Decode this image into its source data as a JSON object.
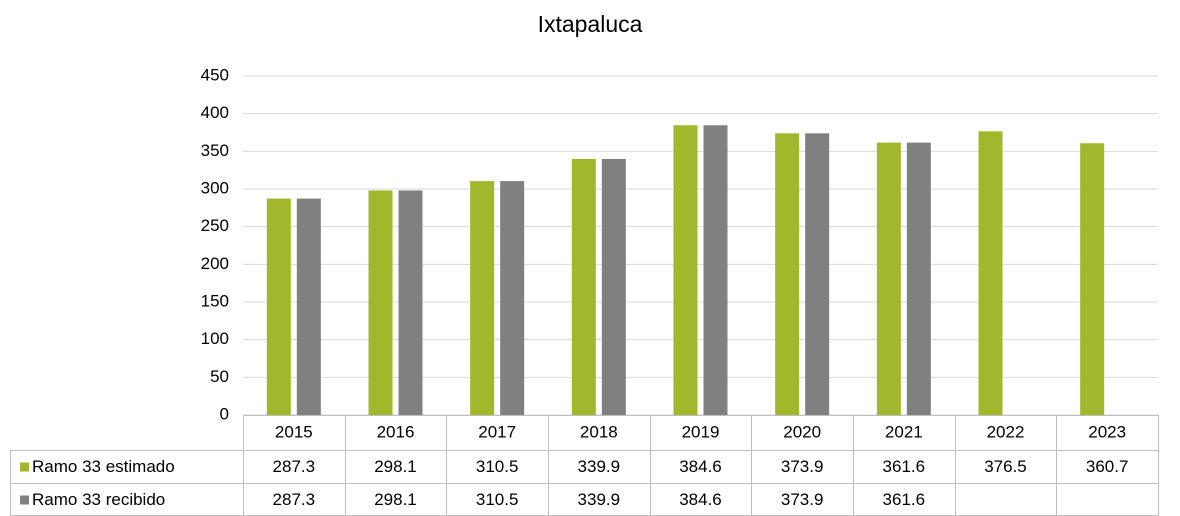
{
  "chart_data": {
    "type": "bar",
    "title": "Ixtapaluca",
    "categories": [
      "2015",
      "2016",
      "2017",
      "2018",
      "2019",
      "2020",
      "2021",
      "2022",
      "2023"
    ],
    "series": [
      {
        "name": "Ramo 33 estimado",
        "color": "#a2b72b",
        "values": [
          287.3,
          298.1,
          310.5,
          339.9,
          384.6,
          373.9,
          361.6,
          376.5,
          360.7
        ]
      },
      {
        "name": "Ramo 33 recibido",
        "color": "#808080",
        "values": [
          287.3,
          298.1,
          310.5,
          339.9,
          384.6,
          373.9,
          361.6,
          null,
          null
        ]
      }
    ],
    "ylim": [
      0,
      450
    ],
    "yticks": [
      0,
      50,
      100,
      150,
      200,
      250,
      300,
      350,
      400,
      450
    ],
    "grid": true
  }
}
